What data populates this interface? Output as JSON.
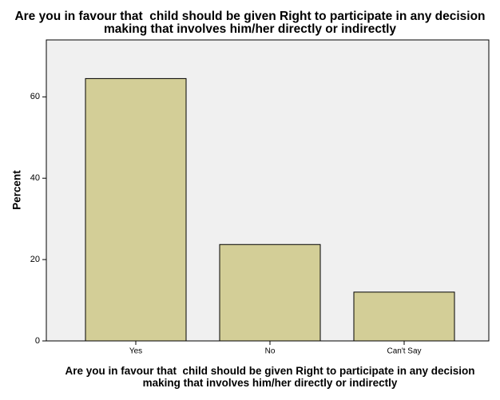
{
  "chart_data": {
    "type": "bar",
    "title": "Are you in favour that  child should be given Right to participate in any decision making that involves him/her directly or indirectly",
    "x_label": "Are you in favour that  child should be given Right to participate in any decision making that involves him/her directly or indirectly",
    "y_label": "Percent",
    "categories": [
      "Yes",
      "No",
      "Can't Say"
    ],
    "values": [
      64.5,
      23.7,
      12.0
    ],
    "color": "#d3ce97",
    "ylim": [
      0,
      74
    ],
    "yticks": [
      0,
      20,
      40,
      60
    ]
  }
}
